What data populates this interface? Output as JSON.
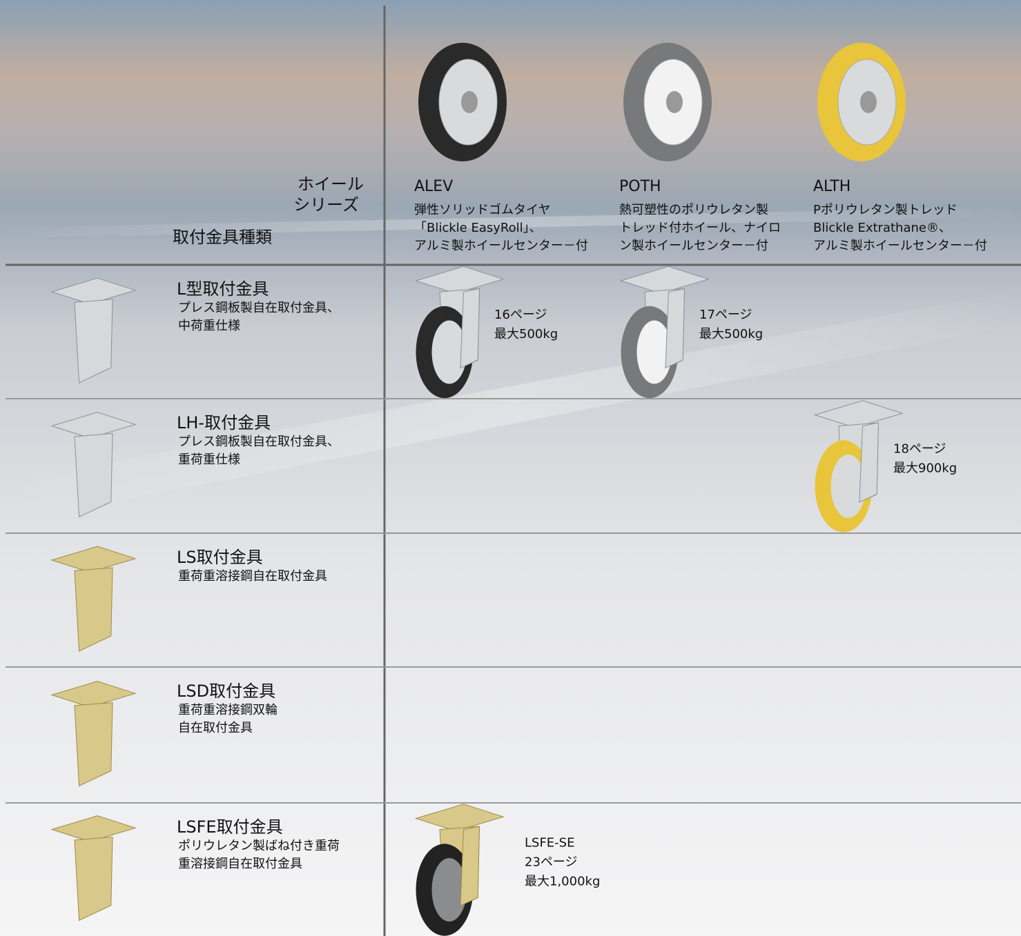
{
  "header": {
    "corner_top": [
      "ホイール",
      "シリーズ"
    ],
    "corner_bottom": "取付金具種類"
  },
  "wheels": [
    {
      "name": "ALEV",
      "description": [
        "弾性ソリッドゴムタイヤ",
        "「Blickle EasyRoll」、",
        "アルミ製ホイールセンター－付"
      ]
    },
    {
      "name": "POTH",
      "description": [
        "熱可塑性のポリウレタン製",
        "トレッド付ホイール、ナイロ",
        "ン製ホイールセンター－付"
      ]
    },
    {
      "name": "ALTH",
      "description": [
        "Pポリウレタン製トレッド",
        "Blickle Extrathane®、",
        "アルミ製ホイールセンター－付"
      ]
    }
  ],
  "brackets": [
    {
      "name": "L型取付金具",
      "description": [
        "プレス鋼板製自在取付金具、",
        "中荷重仕様"
      ],
      "products": [
        {
          "lines": [
            "16ページ",
            "最大500kg"
          ]
        },
        {
          "lines": [
            "17ページ",
            "最大500kg"
          ]
        },
        null
      ]
    },
    {
      "name": "LH-取付金具",
      "description": [
        "プレス鋼板製自在取付金具、",
        "重荷重仕様"
      ],
      "products": [
        null,
        null,
        {
          "lines": [
            "18ページ",
            "最大900kg"
          ]
        }
      ]
    },
    {
      "name": "LS取付金具",
      "description": [
        "重荷重溶接鋼自在取付金具"
      ],
      "products": [
        null,
        null,
        null
      ]
    },
    {
      "name": "LSD取付金具",
      "description": [
        "重荷重溶接鋼双輪",
        "自在取付金具"
      ],
      "products": [
        null,
        null,
        null
      ]
    },
    {
      "name": "LSFE取付金具",
      "description": [
        "ポリウレタン製ばね付き重荷",
        "重溶接鋼自在取付金具"
      ],
      "products": [
        {
          "lines": [
            "LSFE-SE",
            "23ページ",
            "最大1,000kg"
          ]
        },
        null,
        null
      ]
    }
  ]
}
